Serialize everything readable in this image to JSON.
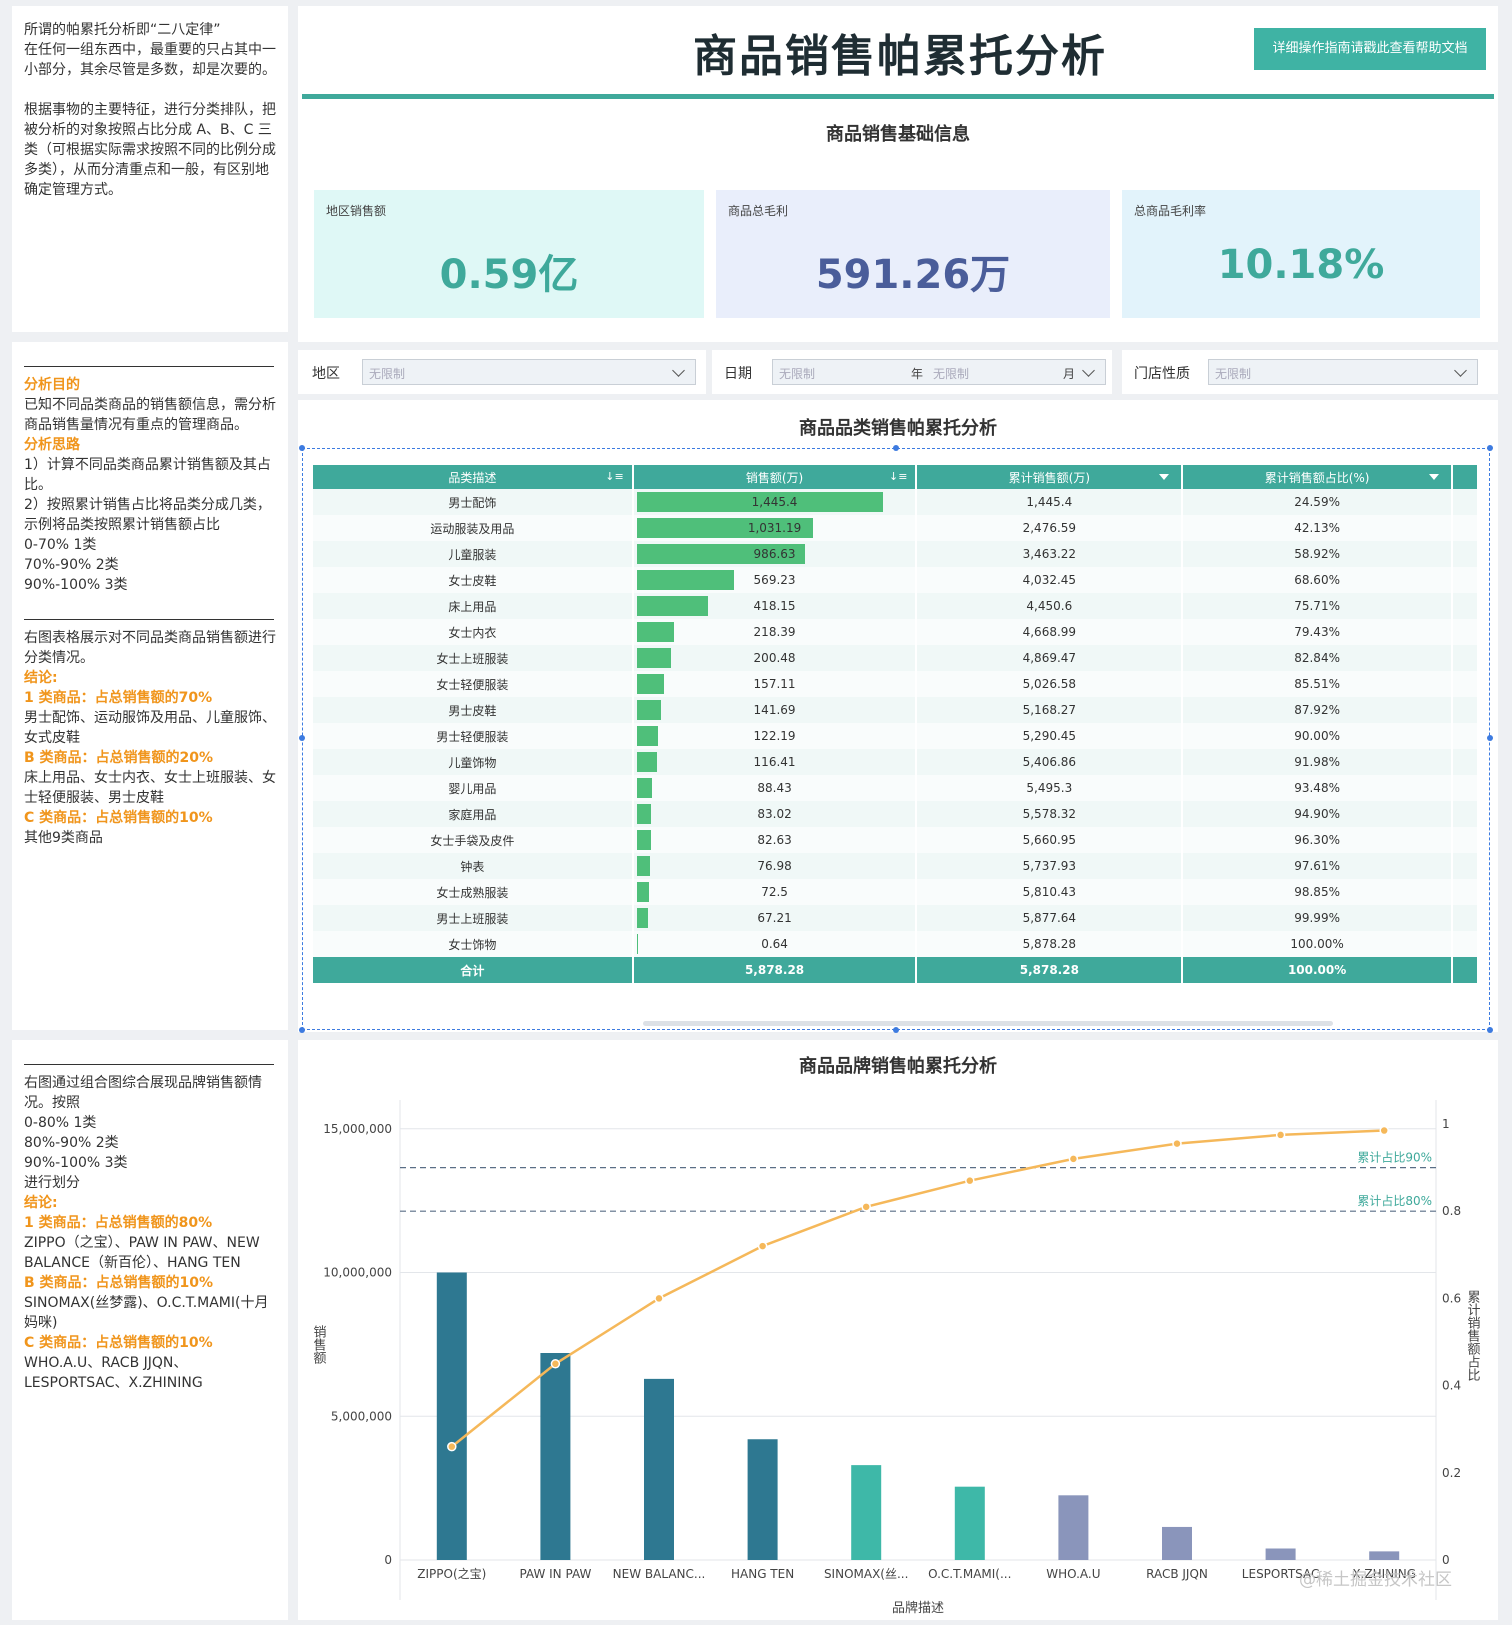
{
  "left_notes": {
    "block1": {
      "line1": "所谓的帕累托分析即“二八定律”",
      "para1": "在任何一组东西中，最重要的只占其中一小部分，其余尽管是多数，却是次要的。",
      "para2": "根据事物的主要特征，进行分类排队，把被分析的对象按照占比分成 A、B、C 三类（可根据实际需求按照不同的比例分成多类），从而分清重点和一般，有区别地确定管理方式。"
    },
    "block2": {
      "purpose_title": "分析目的",
      "purpose_text": "已知不同品类商品的销售额信息，需分析商品销售量情况有重点的管理商品。",
      "idea_title": "分析思路",
      "idea_1": "1）计算不同品类商品累计销售额及其占比。",
      "idea_2": "2）按照累计销售占比将品类分成几类，示例将品类按照累计销售额占比",
      "idea_3": "0-70% 1类",
      "idea_4": "70%-90% 2类",
      "idea_5": "90%-100% 3类",
      "desc": "右图表格展示对不同品类商品销售额进行分类情况。",
      "concl_title": "结论:",
      "a_title": "1 类商品：占总销售额的70%",
      "a_text": "男士配饰、运动服饰及用品、儿童服饰、女式皮鞋",
      "b_title": "B 类商品：占总销售额的20%",
      "b_text": "床上用品、女士内衣、女士上班服装、女士轻便服装、男士皮鞋",
      "c_title": "C 类商品：占总销售额的10%",
      "c_text": "其他9类商品"
    },
    "block3": {
      "desc": "右图通过组合图综合展现品牌销售额情况。按照",
      "r1": "0-80% 1类",
      "r2": "80%-90% 2类",
      "r3": "90%-100% 3类",
      "r4": "进行划分",
      "concl_title": "结论:",
      "a_title": "1 类商品：占总销售额的80%",
      "a_text": "ZIPPO（之宝）、PAW IN PAW、NEW BALANCE（新百伦）、HANG TEN",
      "b_title": "B 类商品：占总销售额的10%",
      "b_text": "SINOMAX(丝梦露)、O.C.T.MAMI(十月妈咪)",
      "c_title": "C 类商品：占总销售额的10%",
      "c_text": "WHO.A.U、RACB JJQN、LESPORTSAC、X.ZHINING"
    }
  },
  "header": {
    "title": "商品销售帕累托分析",
    "help_button": "详细操作指南请戳此查看帮助文档"
  },
  "basic_info": {
    "title": "商品销售基础信息",
    "kpis": [
      {
        "label": "地区销售额",
        "value": "0.59亿",
        "bg": "#dff8f6",
        "color": "#3fa99b"
      },
      {
        "label": "商品总毛利",
        "value": "591.26万",
        "bg": "#e9eefb",
        "color": "#4a5d9a"
      },
      {
        "label": "总商品毛利率",
        "value": "10.18%",
        "bg": "#e2f3fb",
        "color": "#3fa99b"
      }
    ]
  },
  "filters": {
    "region_label": "地区",
    "region_placeholder": "无限制",
    "date_label": "日期",
    "year_placeholder": "无限制",
    "year_unit": "年",
    "month_placeholder": "无限制",
    "month_unit": "月",
    "store_label": "门店性质",
    "store_placeholder": "无限制"
  },
  "category_table": {
    "title": "商品品类销售帕累托分析",
    "headers": [
      "品类描述",
      "销售额(万)",
      "累计销售额(万)",
      "累计销售额占比(%)"
    ],
    "rows": [
      {
        "name": "男士配饰",
        "sales": "1,445.4",
        "v": 1445.4,
        "cum": "1,445.4",
        "pct": "24.59%"
      },
      {
        "name": "运动服装及用品",
        "sales": "1,031.19",
        "v": 1031.19,
        "cum": "2,476.59",
        "pct": "42.13%"
      },
      {
        "name": "儿童服装",
        "sales": "986.63",
        "v": 986.63,
        "cum": "3,463.22",
        "pct": "58.92%"
      },
      {
        "name": "女士皮鞋",
        "sales": "569.23",
        "v": 569.23,
        "cum": "4,032.45",
        "pct": "68.60%"
      },
      {
        "name": "床上用品",
        "sales": "418.15",
        "v": 418.15,
        "cum": "4,450.6",
        "pct": "75.71%"
      },
      {
        "name": "女士内衣",
        "sales": "218.39",
        "v": 218.39,
        "cum": "4,668.99",
        "pct": "79.43%"
      },
      {
        "name": "女士上班服装",
        "sales": "200.48",
        "v": 200.48,
        "cum": "4,869.47",
        "pct": "82.84%"
      },
      {
        "name": "女士轻便服装",
        "sales": "157.11",
        "v": 157.11,
        "cum": "5,026.58",
        "pct": "85.51%"
      },
      {
        "name": "男士皮鞋",
        "sales": "141.69",
        "v": 141.69,
        "cum": "5,168.27",
        "pct": "87.92%"
      },
      {
        "name": "男士轻便服装",
        "sales": "122.19",
        "v": 122.19,
        "cum": "5,290.45",
        "pct": "90.00%"
      },
      {
        "name": "儿童饰物",
        "sales": "116.41",
        "v": 116.41,
        "cum": "5,406.86",
        "pct": "91.98%"
      },
      {
        "name": "婴儿用品",
        "sales": "88.43",
        "v": 88.43,
        "cum": "5,495.3",
        "pct": "93.48%"
      },
      {
        "name": "家庭用品",
        "sales": "83.02",
        "v": 83.02,
        "cum": "5,578.32",
        "pct": "94.90%"
      },
      {
        "name": "女士手袋及皮件",
        "sales": "82.63",
        "v": 82.63,
        "cum": "5,660.95",
        "pct": "96.30%"
      },
      {
        "name": "钟表",
        "sales": "76.98",
        "v": 76.98,
        "cum": "5,737.93",
        "pct": "97.61%"
      },
      {
        "name": "女士成熟服装",
        "sales": "72.5",
        "v": 72.5,
        "cum": "5,810.43",
        "pct": "98.85%"
      },
      {
        "name": "男士上班服装",
        "sales": "67.21",
        "v": 67.21,
        "cum": "5,877.64",
        "pct": "99.99%"
      },
      {
        "name": "女士饰物",
        "sales": "0.64",
        "v": 0.64,
        "cum": "5,878.28",
        "pct": "100.00%"
      }
    ],
    "total": {
      "name": "合计",
      "sales": "5,878.28",
      "cum": "5,878.28",
      "pct": "100.00%"
    },
    "max_value": 1445.4,
    "bar_color": "#4fbf7a"
  },
  "brand_chart_title": "商品品牌销售帕累托分析",
  "chart_data": {
    "type": "bar",
    "categories": [
      "ZIPPO(之宝)",
      "PAW IN PAW",
      "NEW BALANC...",
      "HANG TEN",
      "SINOMAX(丝...",
      "O.C.T.MAMI(...",
      "WHO.A.U",
      "RACB JJQN",
      "LESPORTSAC",
      "X.ZHINING"
    ],
    "series": [
      {
        "name": "",
        "values": [
          10000000,
          7200000,
          6300000,
          4200000,
          3300000,
          2550000,
          2250000,
          1150000,
          400000,
          300000
        ],
        "colors": [
          "#2e7891",
          "#2e7891",
          "#2e7891",
          "#2e7891",
          "#3eb8a8",
          "#3eb8a8",
          "#8a95bb",
          "#8a95bb",
          "#8a95bb",
          "#8a95bb"
        ]
      },
      {
        "name": "",
        "type": "line",
        "axis": "right",
        "values": [
          0.26,
          0.45,
          0.6,
          0.72,
          0.81,
          0.87,
          0.92,
          0.955,
          0.975,
          0.985
        ],
        "color": "#f5b85a"
      }
    ],
    "ylabel": "销售额",
    "y2label": "累计销售额占比",
    "xlabel": "品牌描述",
    "ylim": [
      0,
      16000000
    ],
    "y_ticks": [
      "15,000,000",
      "10,000,000",
      "5,000,000",
      "0"
    ],
    "y_tick_values": [
      15000000,
      10000000,
      5000000,
      0
    ],
    "y2lim": [
      0,
      1
    ],
    "y2_ticks": [
      "1",
      "0.8",
      "0.6",
      "0.4",
      "0.2",
      "0"
    ],
    "y2_tick_values": [
      1,
      0.8,
      0.6,
      0.4,
      0.2,
      0
    ],
    "ref_lines": [
      {
        "label": "累计占比90%",
        "value": 0.9
      },
      {
        "label": "累计占比80%",
        "value": 0.8
      }
    ]
  },
  "watermark": "@稀土掘金技术社区"
}
